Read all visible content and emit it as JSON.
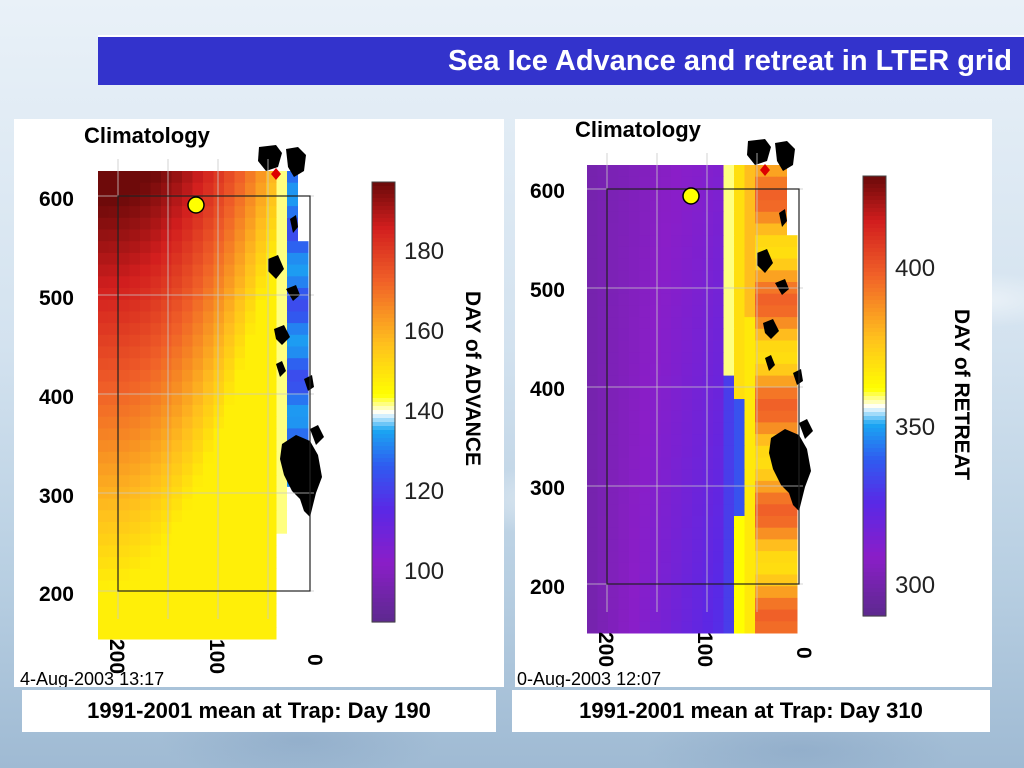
{
  "slide": {
    "title": "Sea Ice Advance and retreat in LTER grid"
  },
  "chart_data": [
    {
      "type": "heatmap",
      "title": "Climatology",
      "y_ticks": [
        "600",
        "500",
        "400",
        "300",
        "200"
      ],
      "x_ticks": [
        "200",
        "100",
        "0"
      ],
      "colorbar_label": "DAY of ADVANCE",
      "colorbar_ticks": [
        "180",
        "160",
        "140",
        "120",
        "100"
      ],
      "colorbar_range": [
        88,
        198
      ],
      "timestamp": "4-Aug-2003  13:17",
      "trap_marker": "yellow circle",
      "caption": "1991-2001 mean at Trap: Day 190",
      "colors": {
        "high": "#7a0a0a",
        "mid": "#ffff00",
        "low": "#5b2a8c",
        "land": "#000000"
      }
    },
    {
      "type": "heatmap",
      "title": "Climatology",
      "y_ticks": [
        "600",
        "500",
        "400",
        "300",
        "200"
      ],
      "x_ticks": [
        "200",
        "100",
        "0"
      ],
      "colorbar_label": "DAY of RETREAT",
      "colorbar_ticks": [
        "400",
        "350",
        "300"
      ],
      "colorbar_range": [
        288,
        433
      ],
      "timestamp": "0-Aug-2003  12:07",
      "trap_marker": "yellow circle",
      "caption": "1991-2001 mean at Trap: Day 310",
      "colors": {
        "high": "#7a0a0a",
        "mid": "#ffff00",
        "low": "#5b2a8c",
        "land": "#000000"
      }
    }
  ]
}
